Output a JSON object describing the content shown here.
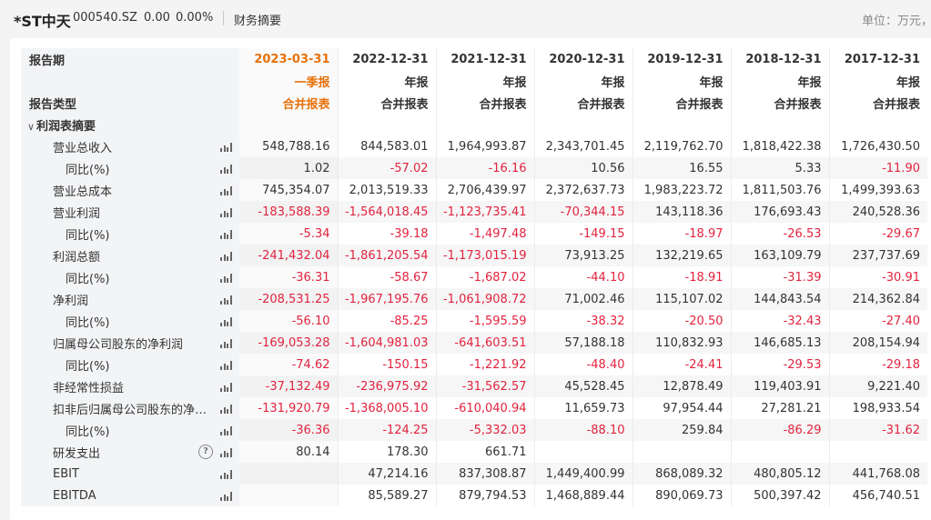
{
  "header": {
    "stock_name": "*ST中天",
    "stock_code": "000540.SZ",
    "price": "0.00",
    "change_pct": "0.00%",
    "section": "财务摘要",
    "unit": "单位：万元，"
  },
  "table": {
    "row_labels": {
      "period": "报告期",
      "report": "",
      "type": "报告类型"
    },
    "columns": [
      {
        "date": "2023-03-31",
        "report": "一季报",
        "type": "合并报表",
        "current": true
      },
      {
        "date": "2022-12-31",
        "report": "年报",
        "type": "合并报表"
      },
      {
        "date": "2021-12-31",
        "report": "年报",
        "type": "合并报表"
      },
      {
        "date": "2020-12-31",
        "report": "年报",
        "type": "合并报表"
      },
      {
        "date": "2019-12-31",
        "report": "年报",
        "type": "合并报表"
      },
      {
        "date": "2018-12-31",
        "report": "年报",
        "type": "合并报表"
      },
      {
        "date": "2017-12-31",
        "report": "年报",
        "type": "合并报表"
      }
    ],
    "section": "利润表摘要",
    "rows": [
      {
        "label": "营业总收入",
        "sub": false,
        "values": [
          "548,788.16",
          "844,583.01",
          "1,964,993.87",
          "2,343,701.45",
          "2,119,762.70",
          "1,818,422.38",
          "1,726,430.50"
        ]
      },
      {
        "label": "同比(%)",
        "sub": true,
        "values": [
          "1.02",
          "-57.02",
          "-16.16",
          "10.56",
          "16.55",
          "5.33",
          "-11.90"
        ]
      },
      {
        "label": "营业总成本",
        "sub": false,
        "values": [
          "745,354.07",
          "2,013,519.33",
          "2,706,439.97",
          "2,372,637.73",
          "1,983,223.72",
          "1,811,503.76",
          "1,499,393.63"
        ]
      },
      {
        "label": "营业利润",
        "sub": false,
        "values": [
          "-183,588.39",
          "-1,564,018.45",
          "-1,123,735.41",
          "-70,344.15",
          "143,118.36",
          "176,693.43",
          "240,528.36"
        ]
      },
      {
        "label": "同比(%)",
        "sub": true,
        "values": [
          "-5.34",
          "-39.18",
          "-1,497.48",
          "-149.15",
          "-18.97",
          "-26.53",
          "-29.67"
        ]
      },
      {
        "label": "利润总额",
        "sub": false,
        "values": [
          "-241,432.04",
          "-1,861,205.54",
          "-1,173,015.19",
          "73,913.25",
          "132,219.65",
          "163,109.79",
          "237,737.69"
        ]
      },
      {
        "label": "同比(%)",
        "sub": true,
        "values": [
          "-36.31",
          "-58.67",
          "-1,687.02",
          "-44.10",
          "-18.91",
          "-31.39",
          "-30.91"
        ]
      },
      {
        "label": "净利润",
        "sub": false,
        "values": [
          "-208,531.25",
          "-1,967,195.76",
          "-1,061,908.72",
          "71,002.46",
          "115,107.02",
          "144,843.54",
          "214,362.84"
        ]
      },
      {
        "label": "同比(%)",
        "sub": true,
        "values": [
          "-56.10",
          "-85.25",
          "-1,595.59",
          "-38.32",
          "-20.50",
          "-32.43",
          "-27.40"
        ]
      },
      {
        "label": "归属母公司股东的净利润",
        "sub": false,
        "values": [
          "-169,053.28",
          "-1,604,981.03",
          "-641,603.51",
          "57,188.18",
          "110,832.93",
          "146,685.13",
          "208,154.94"
        ]
      },
      {
        "label": "同比(%)",
        "sub": true,
        "values": [
          "-74.62",
          "-150.15",
          "-1,221.92",
          "-48.40",
          "-24.41",
          "-29.53",
          "-29.18"
        ]
      },
      {
        "label": "非经常性损益",
        "sub": false,
        "values": [
          "-37,132.49",
          "-236,975.92",
          "-31,562.57",
          "45,528.45",
          "12,878.49",
          "119,403.91",
          "9,221.40"
        ]
      },
      {
        "label": "扣非后归属母公司股东的净利...",
        "sub": false,
        "values": [
          "-131,920.79",
          "-1,368,005.10",
          "-610,040.94",
          "11,659.73",
          "97,954.44",
          "27,281.21",
          "198,933.54"
        ]
      },
      {
        "label": "同比(%)",
        "sub": true,
        "values": [
          "-36.36",
          "-124.25",
          "-5,332.03",
          "-88.10",
          "259.84",
          "-86.29",
          "-31.62"
        ]
      },
      {
        "label": "研发支出",
        "sub": false,
        "help": true,
        "values": [
          "80.14",
          "178.30",
          "661.71",
          "",
          "",
          "",
          ""
        ]
      },
      {
        "label": "EBIT",
        "sub": false,
        "values": [
          "",
          "47,214.16",
          "837,308.87",
          "1,449,400.99",
          "868,089.32",
          "480,805.12",
          "441,768.08"
        ]
      },
      {
        "label": "EBITDA",
        "sub": false,
        "values": [
          "",
          "85,589.27",
          "879,794.53",
          "1,468,889.44",
          "890,069.73",
          "500,397.42",
          "456,740.51"
        ]
      }
    ]
  },
  "icons": {
    "bar": "bar-chart-icon",
    "help": "help-icon",
    "collapse": "chevron-down-icon"
  },
  "colors": {
    "current_period": "#e8710a",
    "negative": "#e2233e",
    "text": "#333333"
  }
}
